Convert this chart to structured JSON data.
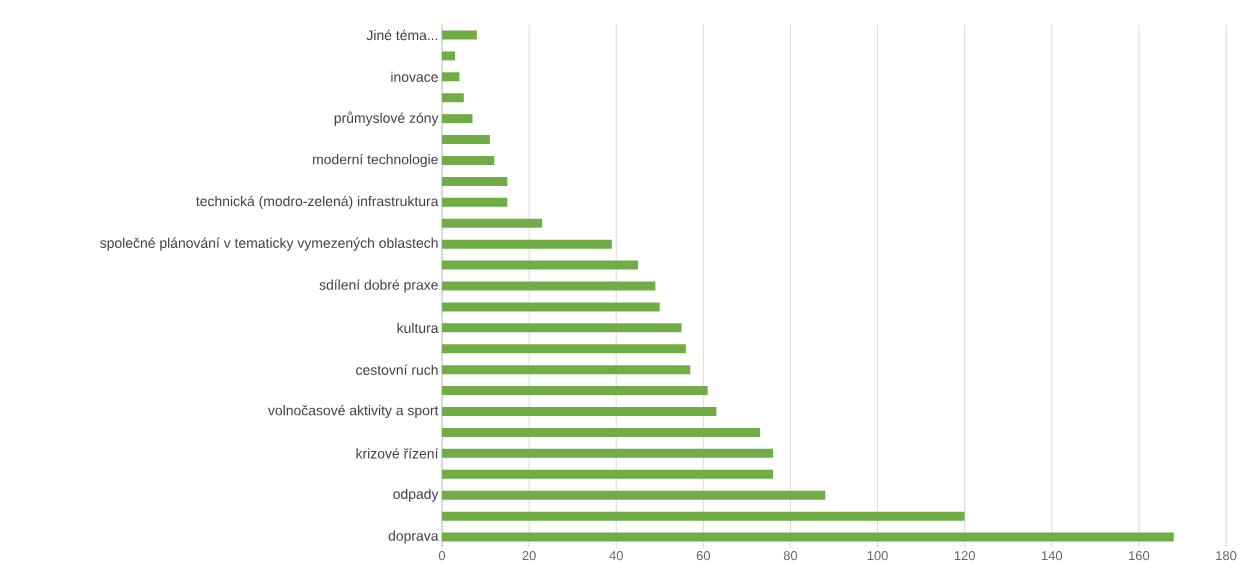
{
  "chart_data": {
    "type": "bar",
    "orientation": "horizontal",
    "categories": [
      "Jiné téma...",
      null,
      "inovace",
      null,
      "průmyslové zóny",
      null,
      "moderní technologie",
      null,
      "technická (modro-zelená) infrastruktura",
      null,
      "společné plánování v tematicky vymezených oblastech",
      null,
      "sdílení dobré praxe",
      null,
      "kultura",
      null,
      "cestovní ruch",
      null,
      "volnočasové aktivity a sport",
      null,
      "krizové řízení",
      null,
      "odpady",
      null,
      "doprava"
    ],
    "values": [
      8,
      3,
      4,
      5,
      7,
      11,
      12,
      15,
      15,
      23,
      39,
      45,
      49,
      50,
      55,
      56,
      57,
      61,
      63,
      73,
      76,
      76,
      88,
      120,
      168
    ],
    "color": "#70ad47",
    "xlim": [
      0,
      180
    ],
    "xticks": [
      0,
      20,
      40,
      60,
      80,
      100,
      120,
      140,
      160,
      180
    ],
    "grid": "x"
  }
}
